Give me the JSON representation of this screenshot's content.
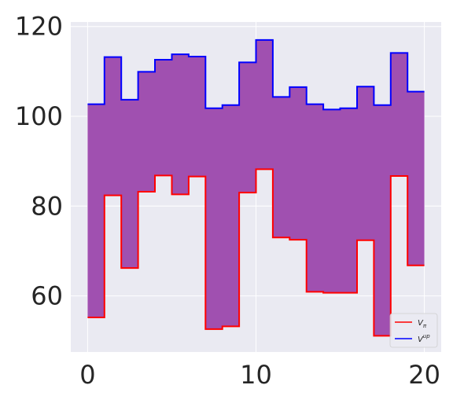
{
  "chart_data": {
    "type": "area",
    "x": [
      0,
      1,
      2,
      3,
      4,
      5,
      6,
      7,
      8,
      9,
      10,
      11,
      12,
      13,
      14,
      15,
      16,
      17,
      18,
      19,
      20
    ],
    "series": [
      {
        "name": "V_π",
        "label_main": "V",
        "label_sub": "π",
        "color": "#ff0000",
        "values": [
          55.2,
          82.4,
          66.2,
          83.2,
          86.8,
          82.6,
          86.6,
          52.6,
          53.2,
          83.0,
          88.2,
          73.0,
          72.5,
          60.9,
          60.7,
          60.7,
          72.4,
          51.1,
          86.7,
          66.8,
          66.8
        ]
      },
      {
        "name": "V^up",
        "label_main": "V",
        "label_sup": "up",
        "color": "#0000ff",
        "values": [
          102.7,
          113.2,
          103.7,
          109.9,
          112.6,
          113.8,
          113.3,
          101.8,
          102.5,
          112.0,
          117.0,
          104.3,
          106.5,
          102.7,
          101.5,
          101.8,
          106.6,
          102.5,
          114.1,
          105.5,
          105.5
        ]
      }
    ],
    "fill_color": "#a050b0",
    "drawstyle": "steps-post",
    "xlim": [
      -1,
      21
    ],
    "ylim": [
      47.5,
      121
    ],
    "xticks": [
      0,
      10,
      20
    ],
    "yticks": [
      60,
      80,
      100,
      120
    ],
    "grid": true,
    "legend_position": "lower-right",
    "title": "",
    "xlabel": "",
    "ylabel": ""
  }
}
